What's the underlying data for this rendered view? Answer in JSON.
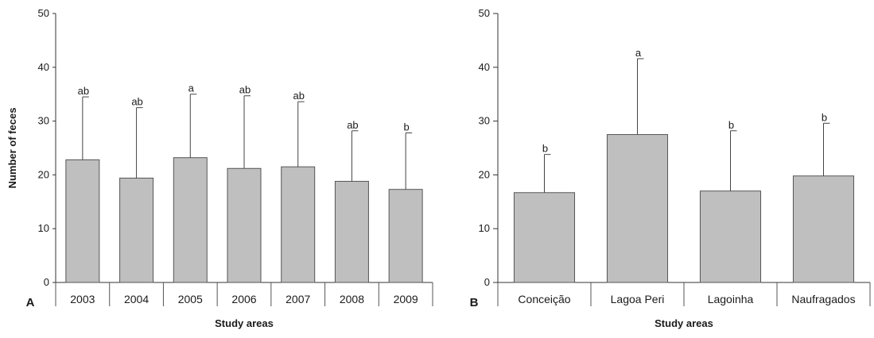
{
  "chart_data": [
    {
      "type": "bar",
      "panel_label": "A",
      "categories": [
        "2003",
        "2004",
        "2005",
        "2006",
        "2007",
        "2008",
        "2009"
      ],
      "values": [
        22.8,
        19.4,
        23.2,
        21.2,
        21.5,
        18.8,
        17.3
      ],
      "error_upper": [
        34.5,
        32.5,
        35.0,
        34.7,
        33.6,
        28.2,
        27.8
      ],
      "significance_labels": [
        "ab",
        "ab",
        "a",
        "ab",
        "ab",
        "ab",
        "b"
      ],
      "xlabel": "Study areas",
      "ylabel": "Number of feces",
      "ylim": [
        0,
        50
      ],
      "yticks": [
        "0",
        "10",
        "20",
        "30",
        "40",
        "50"
      ],
      "grid": false,
      "bar_color": "#bfbfbf",
      "bar_edge_color": "#555555"
    },
    {
      "type": "bar",
      "panel_label": "B",
      "categories": [
        "Conceição",
        "Lagoa Peri",
        "Lagoinha",
        "Naufragados"
      ],
      "values": [
        16.7,
        27.5,
        17.0,
        19.8
      ],
      "error_upper": [
        23.8,
        41.6,
        28.2,
        29.6
      ],
      "significance_labels": [
        "b",
        "a",
        "b",
        "b"
      ],
      "xlabel": "Study areas",
      "ylabel": "",
      "ylim": [
        0,
        50
      ],
      "yticks": [
        "0",
        "10",
        "20",
        "30",
        "40",
        "50"
      ],
      "grid": false,
      "bar_color": "#bfbfbf",
      "bar_edge_color": "#555555"
    }
  ]
}
